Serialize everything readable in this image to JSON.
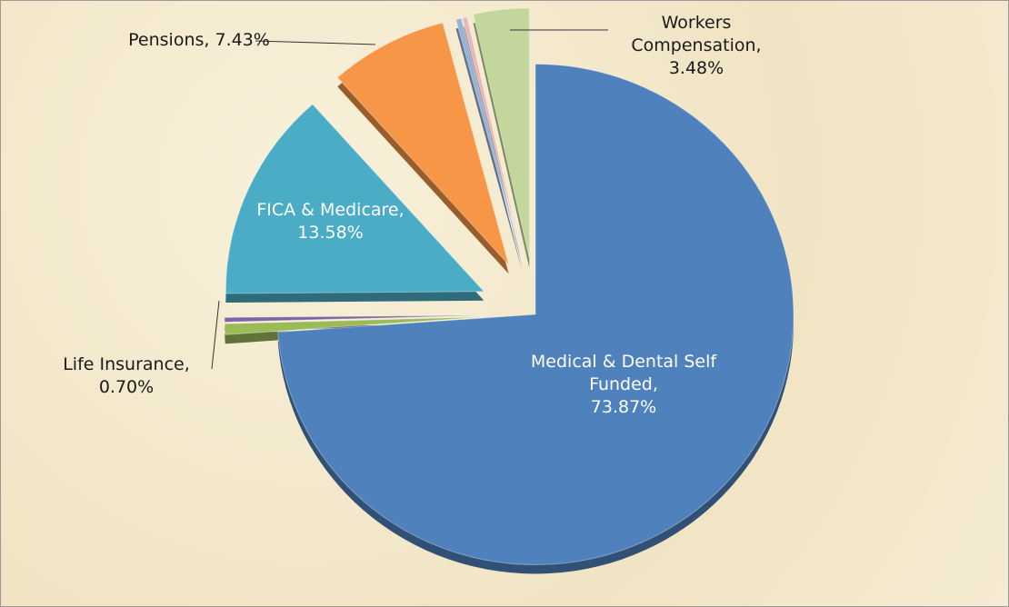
{
  "chart_data": {
    "type": "pie",
    "categories": [
      "Medical & Dental Self Funded,",
      "Life Insurance,",
      null,
      "FICA & Medicare,",
      "Pensions,",
      null,
      null,
      "Workers Compensation,"
    ],
    "values": [
      73.87,
      0.7,
      0.3,
      13.58,
      7.43,
      0.34,
      0.3,
      3.48
    ],
    "value_labels": [
      "73.87%",
      "0.70%",
      null,
      "13.58%",
      "7.43%",
      null,
      null,
      "3.48%"
    ],
    "colors": [
      "#4f81bd",
      "#9bbb59",
      "#8064a2",
      "#4bacc6",
      "#f79646",
      "#95b3d7",
      "#e6b9b8",
      "#c3d69b"
    ]
  }
}
